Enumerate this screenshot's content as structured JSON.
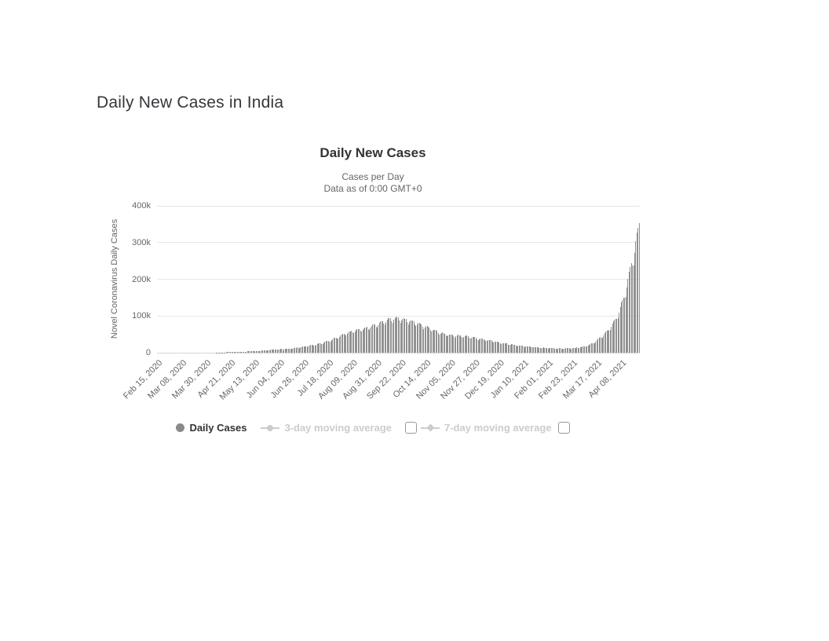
{
  "page": {
    "title": "Daily New Cases in India"
  },
  "chart": {
    "title": "Daily New Cases",
    "subtitle_line1": "Cases per Day",
    "subtitle_line2": "Data as of 0:00 GMT+0",
    "y_axis": {
      "title": "Novel Coronavirus Daily Cases",
      "tick_labels": [
        "400k",
        "300k",
        "200k",
        "100k",
        "0"
      ]
    },
    "legend": {
      "items": [
        {
          "label": "Daily Cases",
          "marker": "circle",
          "enabled": true,
          "has_checkbox": false
        },
        {
          "label": "3-day moving average",
          "marker": "line-circle",
          "enabled": false,
          "has_checkbox": true,
          "checked": false
        },
        {
          "label": "7-day moving average",
          "marker": "line-diamond",
          "enabled": false,
          "has_checkbox": true,
          "checked": false
        }
      ]
    },
    "colors": {
      "bar": "#919191",
      "gridline": "#e6e6e6",
      "axis_line": "#d6d6d6",
      "tick_label": "#666666",
      "chart_title": "#333333",
      "subtitle": "#666666",
      "page_title": "#36373b",
      "legend_enabled_text": "#333333",
      "legend_disabled": "#cccccc",
      "legend_marker": "#8a8a8a"
    }
  },
  "chart_data": {
    "type": "bar",
    "title": "Daily New Cases",
    "subtitle": "Cases per Day / Data as of 0:00 GMT+0",
    "xlabel": "",
    "ylabel": "Novel Coronavirus Daily Cases",
    "ylim": [
      0,
      400000
    ],
    "y_ticks": [
      400000,
      300000,
      200000,
      100000,
      0
    ],
    "y_tick_labels": [
      "400k",
      "300k",
      "200k",
      "100k",
      "0"
    ],
    "grid": true,
    "legend_position": "bottom",
    "start_date": "2020-02-15",
    "end_date": "2021-04-24",
    "x_ticks": {
      "interval_days": 22,
      "labels": [
        "Feb 15, 2020",
        "Mar 08, 2020",
        "Mar 30, 2020",
        "Apr 21, 2020",
        "May 13, 2020",
        "Jun 04, 2020",
        "Jun 26, 2020",
        "Jul 18, 2020",
        "Aug 09, 2020",
        "Aug 31, 2020",
        "Sep 22, 2020",
        "Oct 14, 2020",
        "Nov 05, 2020",
        "Nov 27, 2020",
        "Dec 19, 2020",
        "Jan 10, 2021",
        "Feb 01, 2021",
        "Feb 23, 2021",
        "Mar 17, 2021",
        "Apr 08, 2021"
      ]
    },
    "series": [
      {
        "name": "Daily Cases",
        "type": "bar",
        "visible": true,
        "weekly_interval_days": 7,
        "weekly_values": [
          0,
          0,
          1,
          10,
          40,
          90,
          170,
          400,
          750,
          1200,
          1700,
          2600,
          3900,
          5200,
          6600,
          8100,
          9500,
          11000,
          13500,
          17000,
          20500,
          25000,
          31500,
          40000,
          50000,
          57000,
          62000,
          67000,
          74000,
          83000,
          91000,
          93000,
          88000,
          82000,
          75000,
          66000,
          57000,
          50000,
          46500,
          45500,
          44000,
          40000,
          36000,
          32000,
          27500,
          24000,
          21000,
          18500,
          16500,
          14500,
          12800,
          11800,
          11300,
          12000,
          13500,
          16000,
          25000,
          41000,
          60000,
          89000,
          144000,
          234000,
          340000
        ],
        "weekday_pattern": [
          1.04,
          0.95,
          0.9,
          0.97,
          1.03,
          1.06,
          1.05
        ],
        "peak_first_wave": 98000,
        "peak_last_bar": 354000
      },
      {
        "name": "3-day moving average",
        "type": "line",
        "visible": false
      },
      {
        "name": "7-day moving average",
        "type": "line",
        "visible": false
      }
    ]
  }
}
